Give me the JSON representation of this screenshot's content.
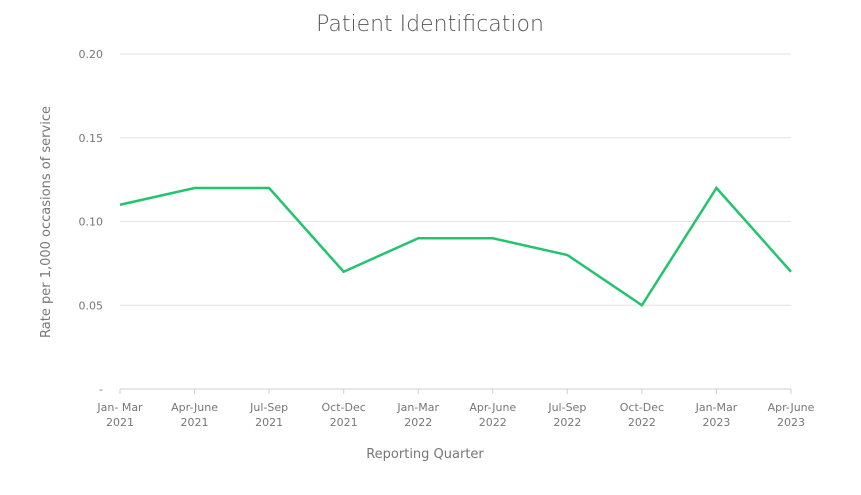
{
  "chart_data": {
    "type": "line",
    "title": "Patient Identification",
    "xlabel": "Reporting Quarter",
    "ylabel": "Rate per 1,000 occasions of service",
    "categories": [
      [
        "Jan- Mar",
        "2021"
      ],
      [
        "Apr-June",
        "2021"
      ],
      [
        "Jul-Sep",
        "2021"
      ],
      [
        "Oct-Dec",
        "2021"
      ],
      [
        "Jan-Mar",
        "2022"
      ],
      [
        "Apr-June",
        "2022"
      ],
      [
        "Jul-Sep",
        "2022"
      ],
      [
        "Oct-Dec",
        "2022"
      ],
      [
        "Jan-Mar",
        "2023"
      ],
      [
        "Apr-June",
        "2023"
      ]
    ],
    "series": [
      {
        "values": [
          0.11,
          0.12,
          0.12,
          0.07,
          0.09,
          0.09,
          0.08,
          0.05,
          0.12,
          0.07
        ]
      }
    ],
    "ylim": [
      0,
      0.2
    ],
    "yticks": [
      {
        "value": 0,
        "label": "-"
      },
      {
        "value": 0.05,
        "label": "0.05"
      },
      {
        "value": 0.1,
        "label": "0.10"
      },
      {
        "value": 0.15,
        "label": "0.15"
      },
      {
        "value": 0.2,
        "label": "0.20"
      }
    ],
    "grid": true,
    "line_color": "#22c46e"
  }
}
